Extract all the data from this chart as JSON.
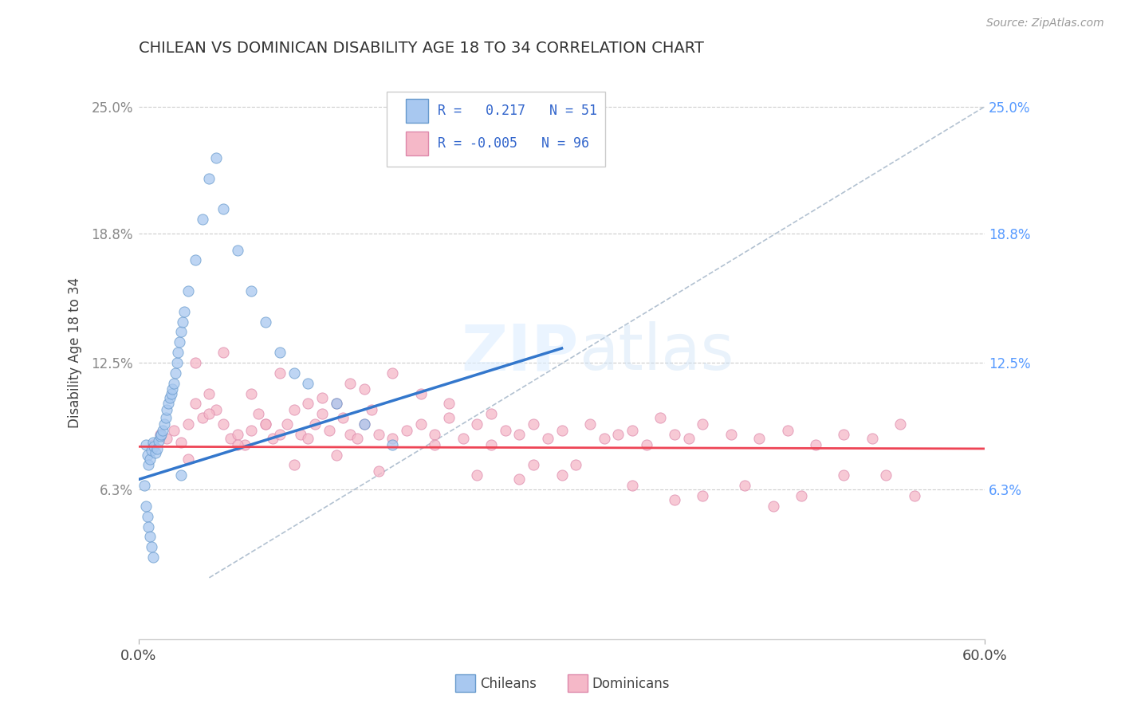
{
  "title": "CHILEAN VS DOMINICAN DISABILITY AGE 18 TO 34 CORRELATION CHART",
  "source": "Source: ZipAtlas.com",
  "ylabel": "Disability Age 18 to 34",
  "ytick_labels": [
    "6.3%",
    "12.5%",
    "18.8%",
    "25.0%"
  ],
  "ytick_values": [
    6.3,
    12.5,
    18.8,
    25.0
  ],
  "xlim": [
    0.0,
    60.0
  ],
  "ylim": [
    -1.0,
    27.0
  ],
  "chilean_color": "#a8c8f0",
  "dominican_color": "#f5b8c8",
  "chilean_edge_color": "#6699cc",
  "dominican_edge_color": "#dd88aa",
  "chilean_line_color": "#3377cc",
  "dominican_line_color": "#ee4455",
  "dashed_line_color": "#aabbcc",
  "background_color": "#ffffff",
  "blue_line_x0": 0.0,
  "blue_line_y0": 6.8,
  "blue_line_x1": 30.0,
  "blue_line_y1": 13.2,
  "red_line_x0": 0.0,
  "red_line_y0": 8.4,
  "red_line_x1": 60.0,
  "red_line_y1": 8.3,
  "dashed_line_x0": 5.0,
  "dashed_line_y0": 2.0,
  "dashed_line_x1": 60.0,
  "dashed_line_y1": 25.0,
  "chilean_x": [
    0.5,
    0.6,
    0.7,
    0.8,
    0.9,
    1.0,
    1.1,
    1.2,
    1.3,
    1.4,
    1.5,
    1.6,
    1.7,
    1.8,
    1.9,
    2.0,
    2.1,
    2.2,
    2.3,
    2.4,
    2.5,
    2.6,
    2.7,
    2.8,
    2.9,
    3.0,
    3.1,
    3.2,
    3.5,
    4.0,
    4.5,
    5.0,
    5.5,
    6.0,
    7.0,
    8.0,
    9.0,
    10.0,
    11.0,
    12.0,
    14.0,
    16.0,
    18.0,
    3.0,
    0.4,
    0.5,
    0.6,
    0.7,
    0.8,
    0.9,
    1.0
  ],
  "chilean_y": [
    8.5,
    8.0,
    7.5,
    7.8,
    8.2,
    8.6,
    8.4,
    8.1,
    8.3,
    8.7,
    8.9,
    9.0,
    9.2,
    9.5,
    9.8,
    10.2,
    10.5,
    10.8,
    11.0,
    11.2,
    11.5,
    12.0,
    12.5,
    13.0,
    13.5,
    14.0,
    14.5,
    15.0,
    16.0,
    17.5,
    19.5,
    21.5,
    22.5,
    20.0,
    18.0,
    16.0,
    14.5,
    13.0,
    12.0,
    11.5,
    10.5,
    9.5,
    8.5,
    7.0,
    6.5,
    5.5,
    5.0,
    4.5,
    4.0,
    3.5,
    3.0
  ],
  "dominican_x": [
    1.0,
    1.5,
    2.0,
    2.5,
    3.0,
    3.5,
    4.0,
    4.5,
    5.0,
    5.5,
    6.0,
    6.5,
    7.0,
    7.5,
    8.0,
    8.5,
    9.0,
    9.5,
    10.0,
    10.5,
    11.0,
    11.5,
    12.0,
    12.5,
    13.0,
    13.5,
    14.0,
    14.5,
    15.0,
    15.5,
    16.0,
    16.5,
    17.0,
    18.0,
    19.0,
    20.0,
    21.0,
    22.0,
    23.0,
    24.0,
    25.0,
    26.0,
    27.0,
    28.0,
    29.0,
    30.0,
    32.0,
    33.0,
    34.0,
    35.0,
    36.0,
    37.0,
    38.0,
    39.0,
    40.0,
    42.0,
    44.0,
    46.0,
    48.0,
    50.0,
    52.0,
    54.0,
    4.0,
    6.0,
    8.0,
    10.0,
    12.0,
    15.0,
    18.0,
    20.0,
    22.0,
    25.0,
    28.0,
    30.0,
    35.0,
    40.0,
    45.0,
    50.0,
    55.0,
    3.5,
    7.0,
    11.0,
    14.0,
    17.0,
    21.0,
    24.0,
    27.0,
    31.0,
    38.0,
    43.0,
    47.0,
    53.0,
    5.0,
    9.0,
    13.0,
    16.0
  ],
  "dominican_y": [
    8.5,
    9.0,
    8.8,
    9.2,
    8.6,
    9.5,
    10.5,
    9.8,
    11.0,
    10.2,
    9.5,
    8.8,
    9.0,
    8.5,
    9.2,
    10.0,
    9.5,
    8.8,
    9.0,
    9.5,
    10.2,
    9.0,
    8.8,
    9.5,
    10.0,
    9.2,
    10.5,
    9.8,
    9.0,
    8.8,
    9.5,
    10.2,
    9.0,
    8.8,
    9.2,
    9.5,
    9.0,
    9.8,
    8.8,
    9.5,
    10.0,
    9.2,
    9.0,
    9.5,
    8.8,
    9.2,
    9.5,
    8.8,
    9.0,
    9.2,
    8.5,
    9.8,
    9.0,
    8.8,
    9.5,
    9.0,
    8.8,
    9.2,
    8.5,
    9.0,
    8.8,
    9.5,
    12.5,
    13.0,
    11.0,
    12.0,
    10.5,
    11.5,
    12.0,
    11.0,
    10.5,
    8.5,
    7.5,
    7.0,
    6.5,
    6.0,
    5.5,
    7.0,
    6.0,
    7.8,
    8.5,
    7.5,
    8.0,
    7.2,
    8.5,
    7.0,
    6.8,
    7.5,
    5.8,
    6.5,
    6.0,
    7.0,
    10.0,
    9.5,
    10.8,
    11.2
  ]
}
